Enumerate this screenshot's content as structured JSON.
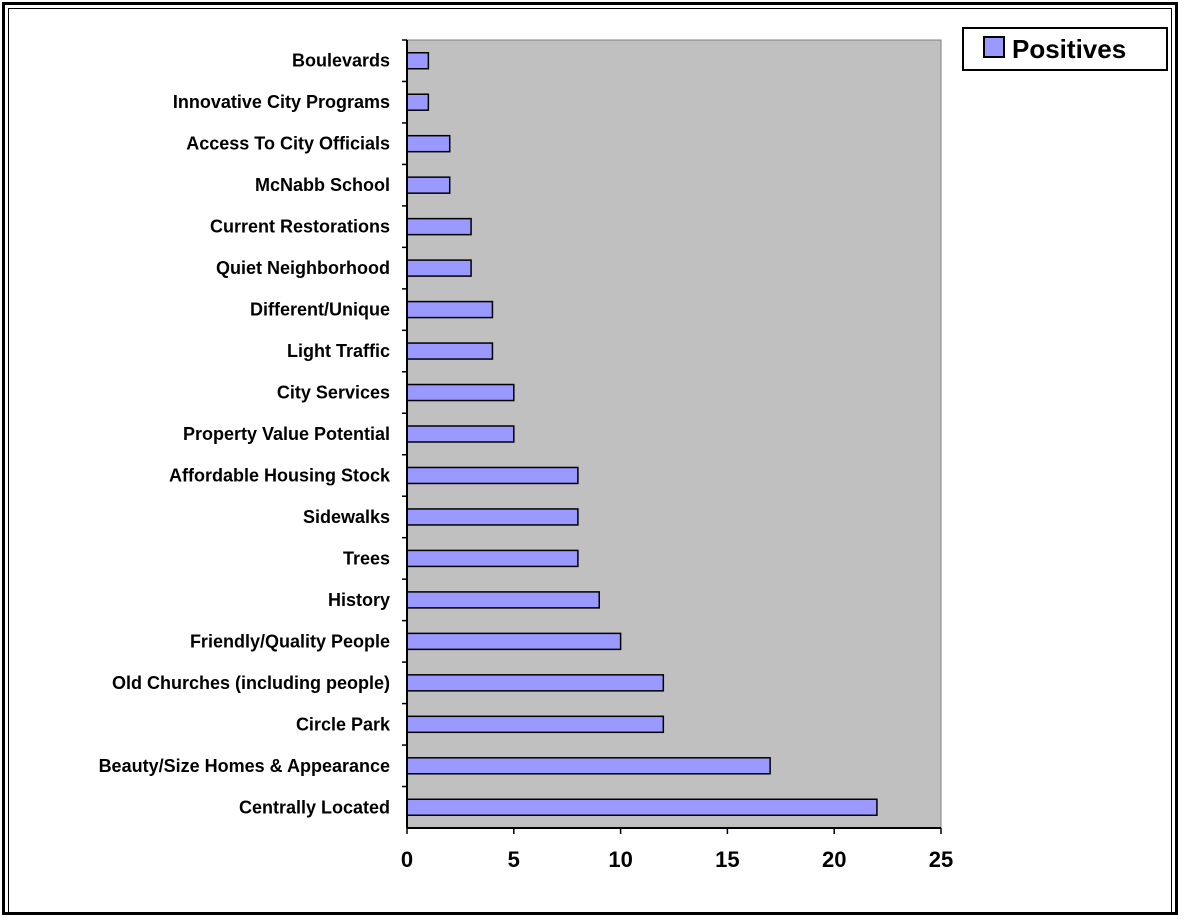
{
  "chart_data": {
    "type": "bar",
    "orientation": "horizontal",
    "categories": [
      "Boulevards",
      "Innovative City Programs",
      "Access To City Officials",
      "McNabb School",
      "Current Restorations",
      "Quiet Neighborhood",
      "Different/Unique",
      "Light Traffic",
      "City Services",
      "Property Value Potential",
      "Affordable Housing Stock",
      "Sidewalks",
      "Trees",
      "History",
      "Friendly/Quality People",
      "Old Churches (including people)",
      "Circle Park",
      "Beauty/Size Homes & Appearance",
      "Centrally Located"
    ],
    "series": [
      {
        "name": "Positives",
        "values": [
          1,
          1,
          2,
          2,
          3,
          3,
          4,
          4,
          5,
          5,
          8,
          8,
          8,
          9,
          10,
          12,
          12,
          17,
          22
        ]
      }
    ],
    "xlim": [
      0,
      25
    ],
    "x_ticks": [
      "0",
      "5",
      "10",
      "15",
      "20",
      "25"
    ],
    "title": "",
    "xlabel": "",
    "ylabel": "",
    "grid": false,
    "legend_position": "top-right",
    "colors": {
      "bar_fill": "#9999ff",
      "plot_background": "#c0c0c0",
      "axis": "#000000"
    }
  }
}
